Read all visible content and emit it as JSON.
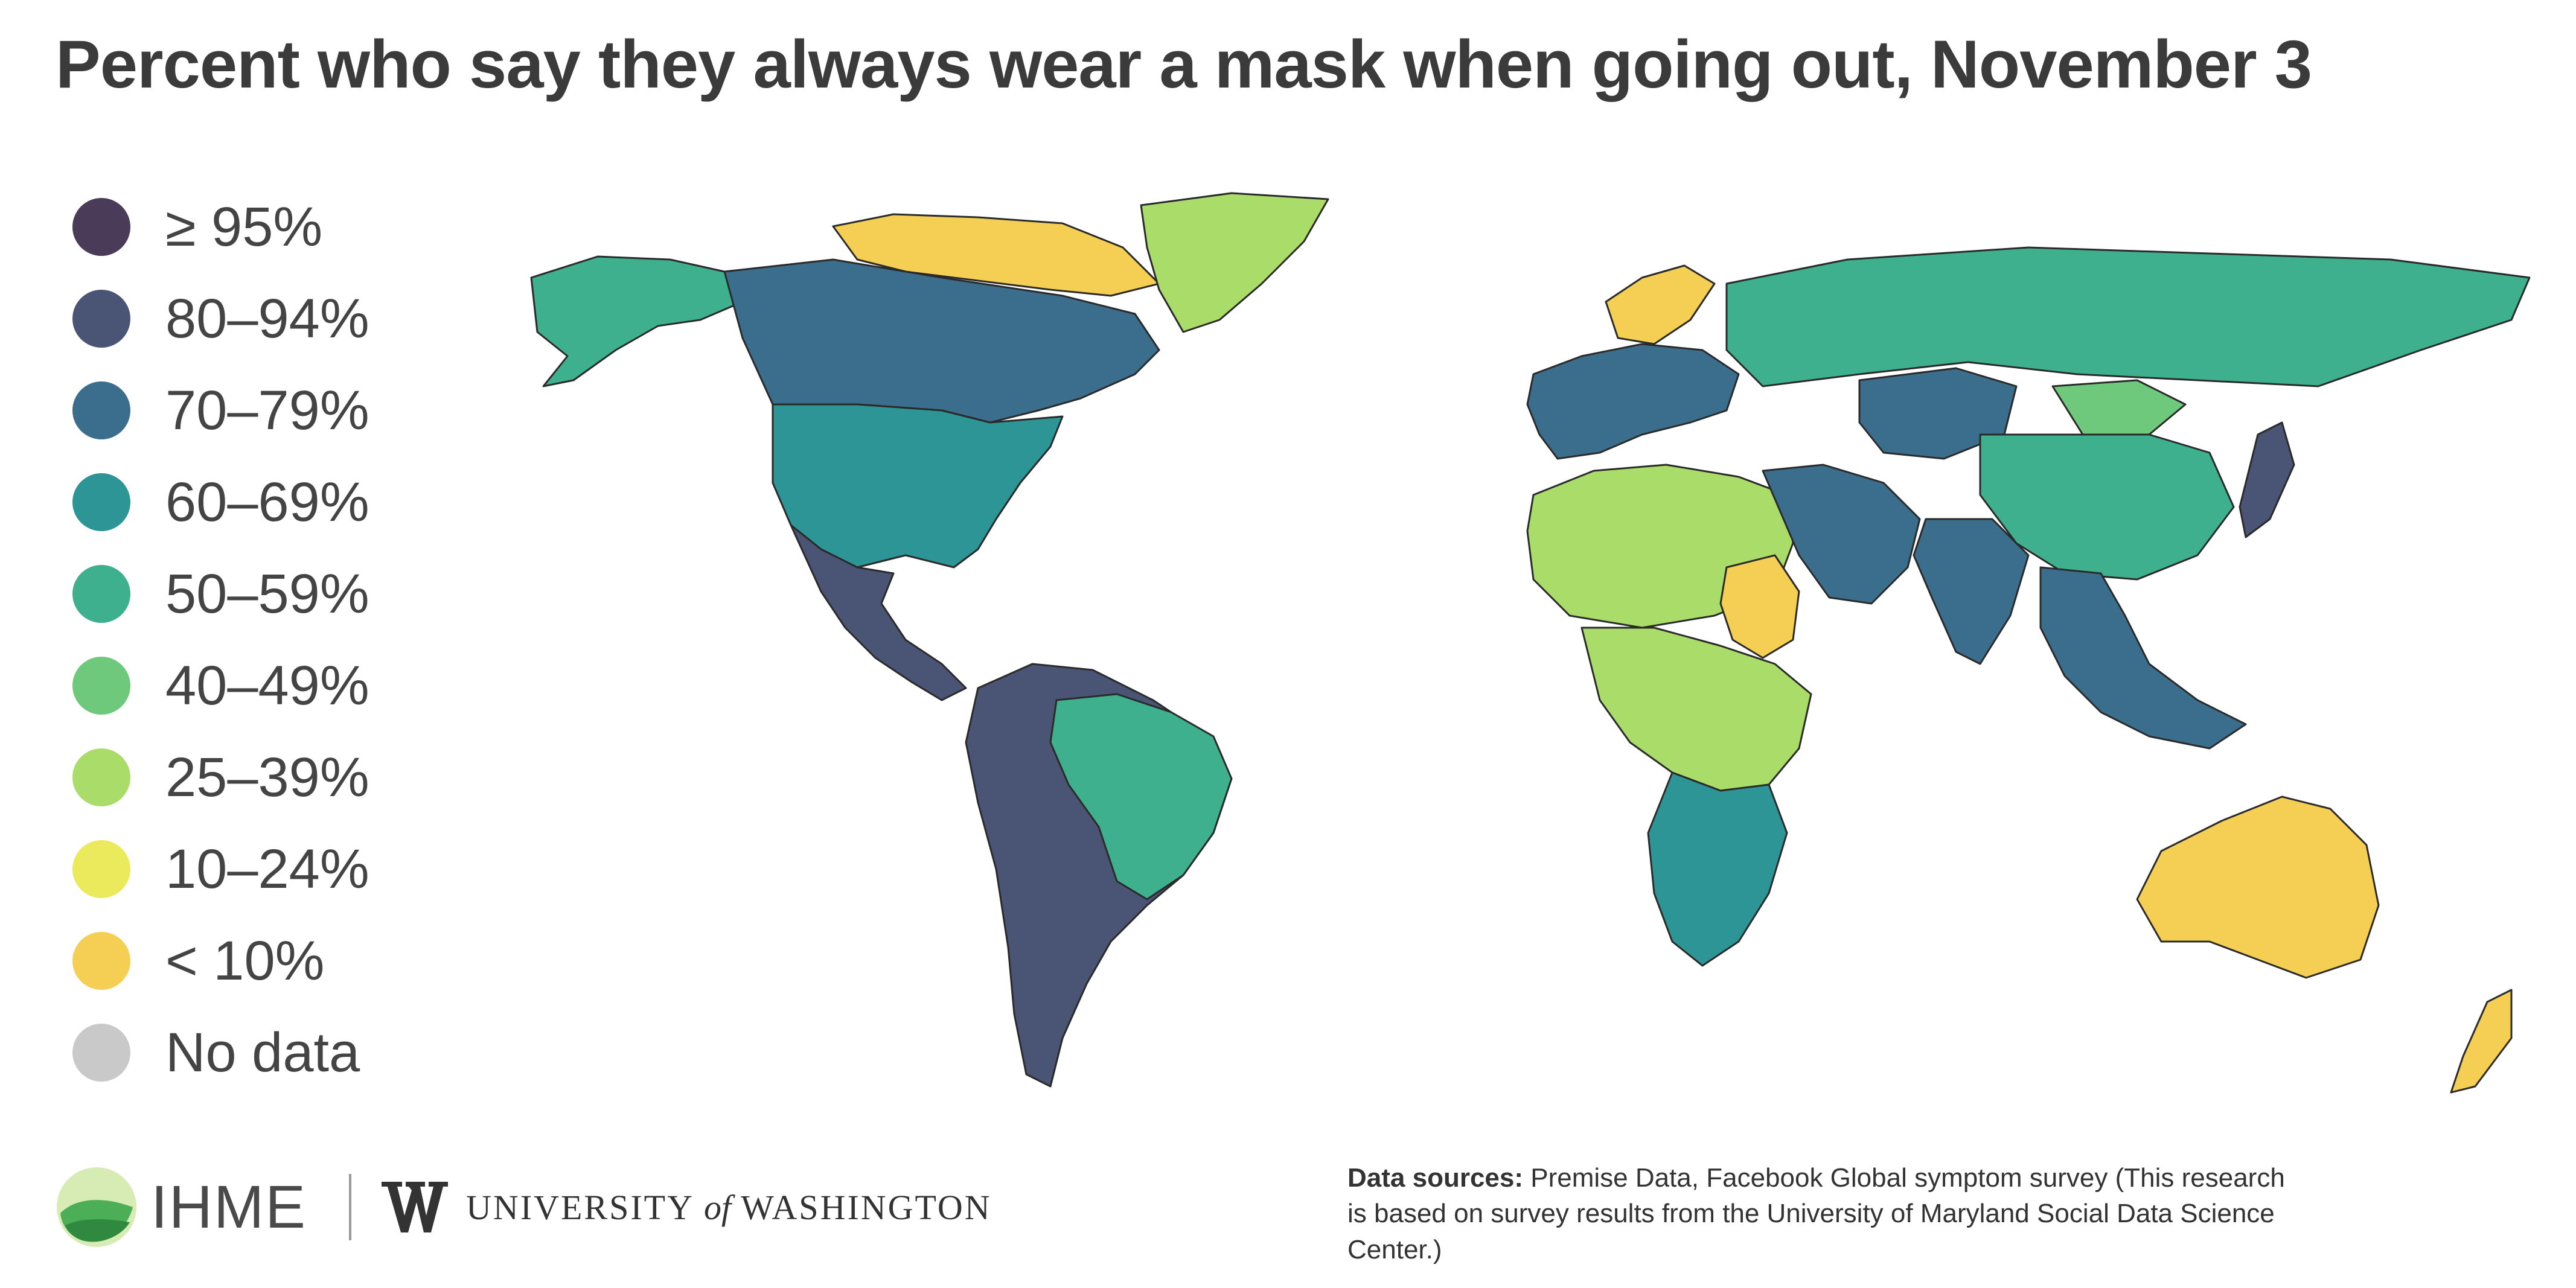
{
  "title": "Percent who say they always wear a mask when going out, November 3",
  "legend": [
    {
      "label": "≥ 95%",
      "color": "#4a3b58"
    },
    {
      "label": "80–94%",
      "color": "#4a5475"
    },
    {
      "label": "70–79%",
      "color": "#3b6e8d"
    },
    {
      "label": "60–69%",
      "color": "#2e9596"
    },
    {
      "label": "50–59%",
      "color": "#3eb08e"
    },
    {
      "label": "40–49%",
      "color": "#6fc97c"
    },
    {
      "label": "25–39%",
      "color": "#a9dc69"
    },
    {
      "label": "10–24%",
      "color": "#ebe95c"
    },
    {
      "label": "< 10%",
      "color": "#f4cf54"
    },
    {
      "label": "No data",
      "color": "#c9c9c9"
    }
  ],
  "footer": {
    "ihme_label": "IHME",
    "uw_label_1": "UNIVERSITY",
    "uw_label_of": "of",
    "uw_label_2": "WASHINGTON",
    "sources_heading": "Data sources:",
    "sources_text": " Premise Data, Facebook Global symptom survey (This research is based on survey results from the University of Maryland Social Data Science Center.)"
  },
  "map_regions": [
    {
      "name": "Canada",
      "color": "#3b6e8d"
    },
    {
      "name": "Canadian Arctic",
      "color": "#f4cf54"
    },
    {
      "name": "Alaska",
      "color": "#3eb08e"
    },
    {
      "name": "United States",
      "color": "#2e9596"
    },
    {
      "name": "Mexico and Central America",
      "color": "#4a5475"
    },
    {
      "name": "South America",
      "color": "#4a5475"
    },
    {
      "name": "Brazil",
      "color": "#3eb08e"
    },
    {
      "name": "Greenland",
      "color": "#a9dc69"
    },
    {
      "name": "Europe",
      "color": "#3b6e8d"
    },
    {
      "name": "Scandinavia",
      "color": "#f4cf54"
    },
    {
      "name": "Russia",
      "color": "#3eb08e"
    },
    {
      "name": "North Africa",
      "color": "#a9dc69"
    },
    {
      "name": "Sudan",
      "color": "#f4cf54"
    },
    {
      "name": "Central Africa",
      "color": "#a9dc69"
    },
    {
      "name": "Southern Africa",
      "color": "#2e9596"
    },
    {
      "name": "Middle East",
      "color": "#3b6e8d"
    },
    {
      "name": "Kazakhstan",
      "color": "#3b6e8d"
    },
    {
      "name": "China",
      "color": "#3eb08e"
    },
    {
      "name": "Mongolia",
      "color": "#6fc97c"
    },
    {
      "name": "India",
      "color": "#3b6e8d"
    },
    {
      "name": "Southeast Asia",
      "color": "#3b6e8d"
    },
    {
      "name": "Japan",
      "color": "#4a5475"
    },
    {
      "name": "Australia",
      "color": "#f4cf54"
    },
    {
      "name": "New Zealand",
      "color": "#f4cf54"
    }
  ]
}
